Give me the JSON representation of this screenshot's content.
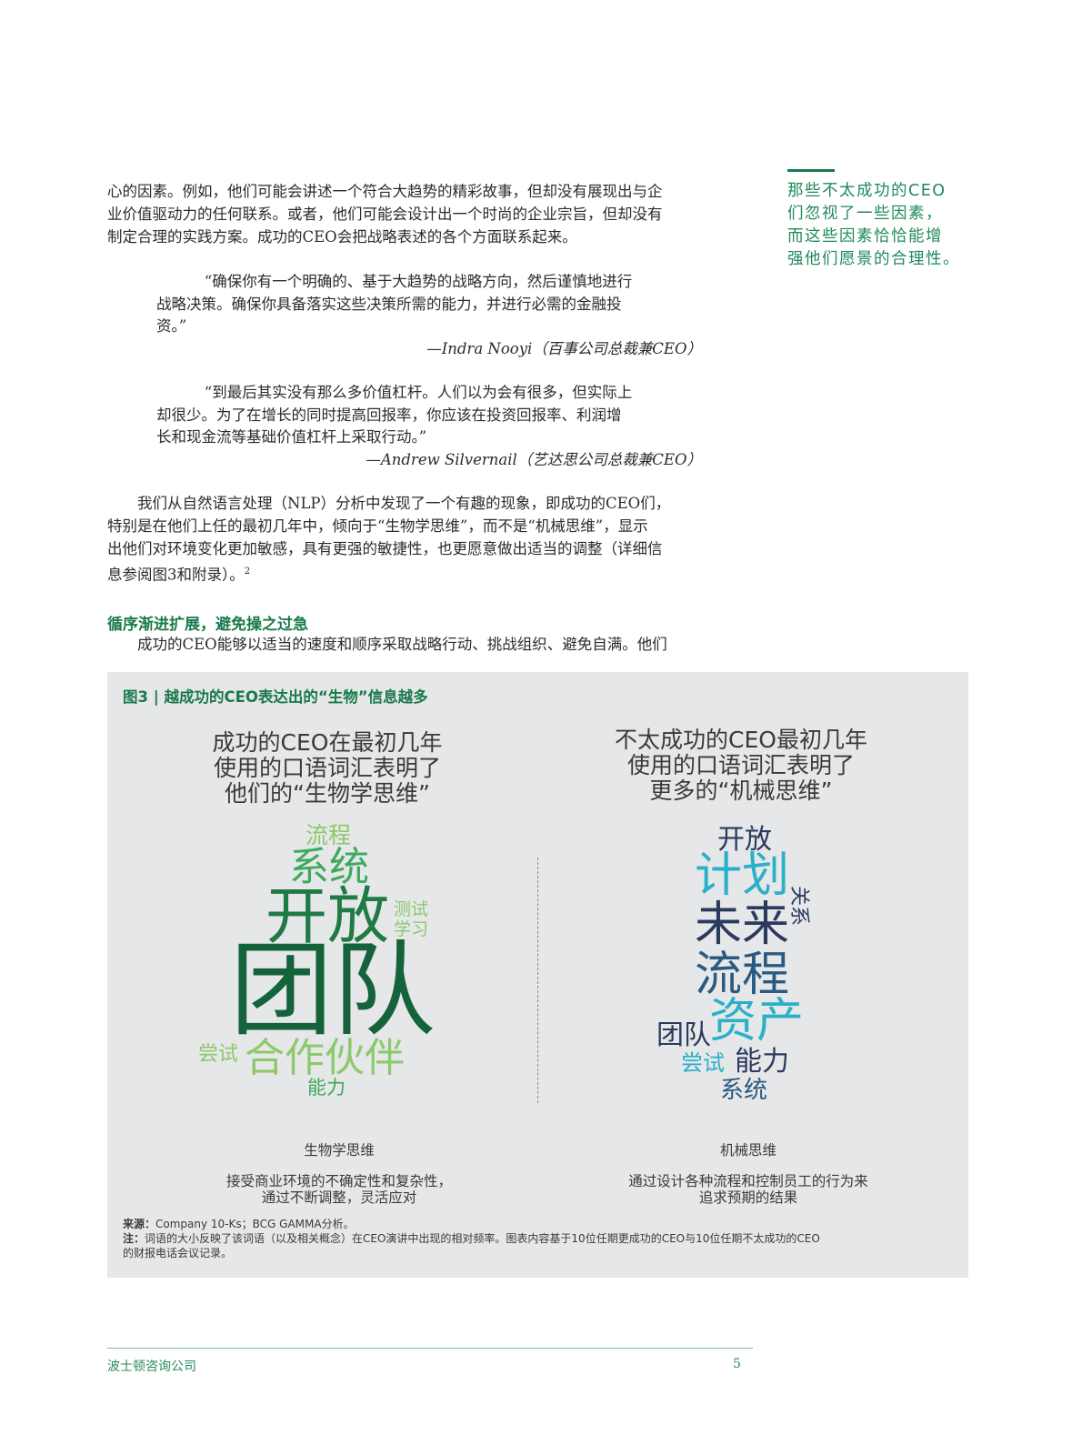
{
  "intro": {
    "line1": "心的因素。例如，他们可能会讲述一个符合大趋势的精彩故事，但却没有展现出与企",
    "line2": "业价值驱动力的任何联系。或者，他们可能会设计出一个时尚的企业宗旨，但却没有",
    "line3": "制定合理的实践方案。成功的CEO会把战略表述的各个方面联系起来。"
  },
  "quote1": {
    "line1": "“确保你有一个明确的、基于大趋势的战略方向，然后谨慎地进行",
    "line2": "战略决策。确保你具备落实这些决策所需的能力，并进行必需的金融投",
    "line3": "资。”",
    "attribution": "—Indra Nooyi（百事公司总裁兼CEO）"
  },
  "quote2": {
    "line1": "“到最后其实没有那么多价值杠杆。人们以为会有很多，但实际上",
    "line2": "却很少。为了在增长的同时提高回报率，你应该在投资回报率、利润增",
    "line3": "长和现金流等基础价值杠杆上采取行动。”",
    "attribution": "—Andrew Silvernail（艺达思公司总裁兼CEO）"
  },
  "para2": {
    "line1": "我们从自然语言处理（NLP）分析中发现了一个有趣的现象，即成功的CEO们，",
    "line2": "特别是在他们上任的最初几年中，倾向于“生物学思维”，而不是“机械思维”，显示",
    "line3": "出他们对环境变化更加敏感，具有更强的敏捷性，也更愿意做出适当的调整（详细信",
    "line4": "息参阅图3和附录）。",
    "footnote": "2"
  },
  "section": {
    "heading": "循序渐进扩展，避免操之过急",
    "line1": "成功的CEO能够以适当的速度和顺序采取战略行动、挑战组织、避免自满。他们"
  },
  "sidebar": {
    "line1": "那些不太成功的CEO",
    "line2": "们忽视了一些因素，",
    "line3": "而这些因素恰恰能增",
    "line4": "强他们愿景的合理性。"
  },
  "figure": {
    "title": "图3 | 越成功的CEO表达出的“生物”信息越多",
    "left": {
      "head1": "成功的CEO在最初几年",
      "head2": "使用的口语词汇表明了",
      "head3": "他们的“生物学思维”",
      "words": {
        "w1": "流程",
        "w2": "系统",
        "w3": "开放",
        "w4": "测试",
        "w5": "学习",
        "w6": "团队",
        "w7": "尝试",
        "w8": "合作伙伴",
        "w9": "能力"
      },
      "caption": "生物学思维",
      "sub1": "接受商业环境的不确定性和复杂性，",
      "sub2": "通过不断调整，灵活应对"
    },
    "right": {
      "head1": "不太成功的CEO最初几年",
      "head2": "使用的口语词汇表明了",
      "head3": "更多的“机械思维”",
      "words": {
        "w1": "开放",
        "w2": "计划",
        "w3": "关系",
        "w4": "未来",
        "w5": "流程",
        "w6": "团队",
        "w7": "资产",
        "w8": "尝试",
        "w9": "能力",
        "w10": "系统"
      },
      "caption": "机械思维",
      "sub1": "通过设计各种流程和控制员工的行为来",
      "sub2": "追求预期的结果"
    },
    "source_label": "来源：",
    "source": "Company 10-Ks；BCG GAMMA分析。",
    "note_label": "注：",
    "note1": "词语的大小反映了该词语（以及相关概念）在CEO演讲中出现的相对频率。图表内容基于10位任期更成功的CEO与10位任期不太成功的CEO",
    "note2": "的财报电话会议记录。"
  },
  "footer": {
    "company": "波士顿咨询公司",
    "page": "5"
  },
  "colors": {
    "dark_green": "#14633a",
    "mid_green": "#3daa5c",
    "light_green": "#8cc96b",
    "navy": "#2a3a5e",
    "teal": "#2bb0c9",
    "brand_green": "#1a7a4c"
  }
}
